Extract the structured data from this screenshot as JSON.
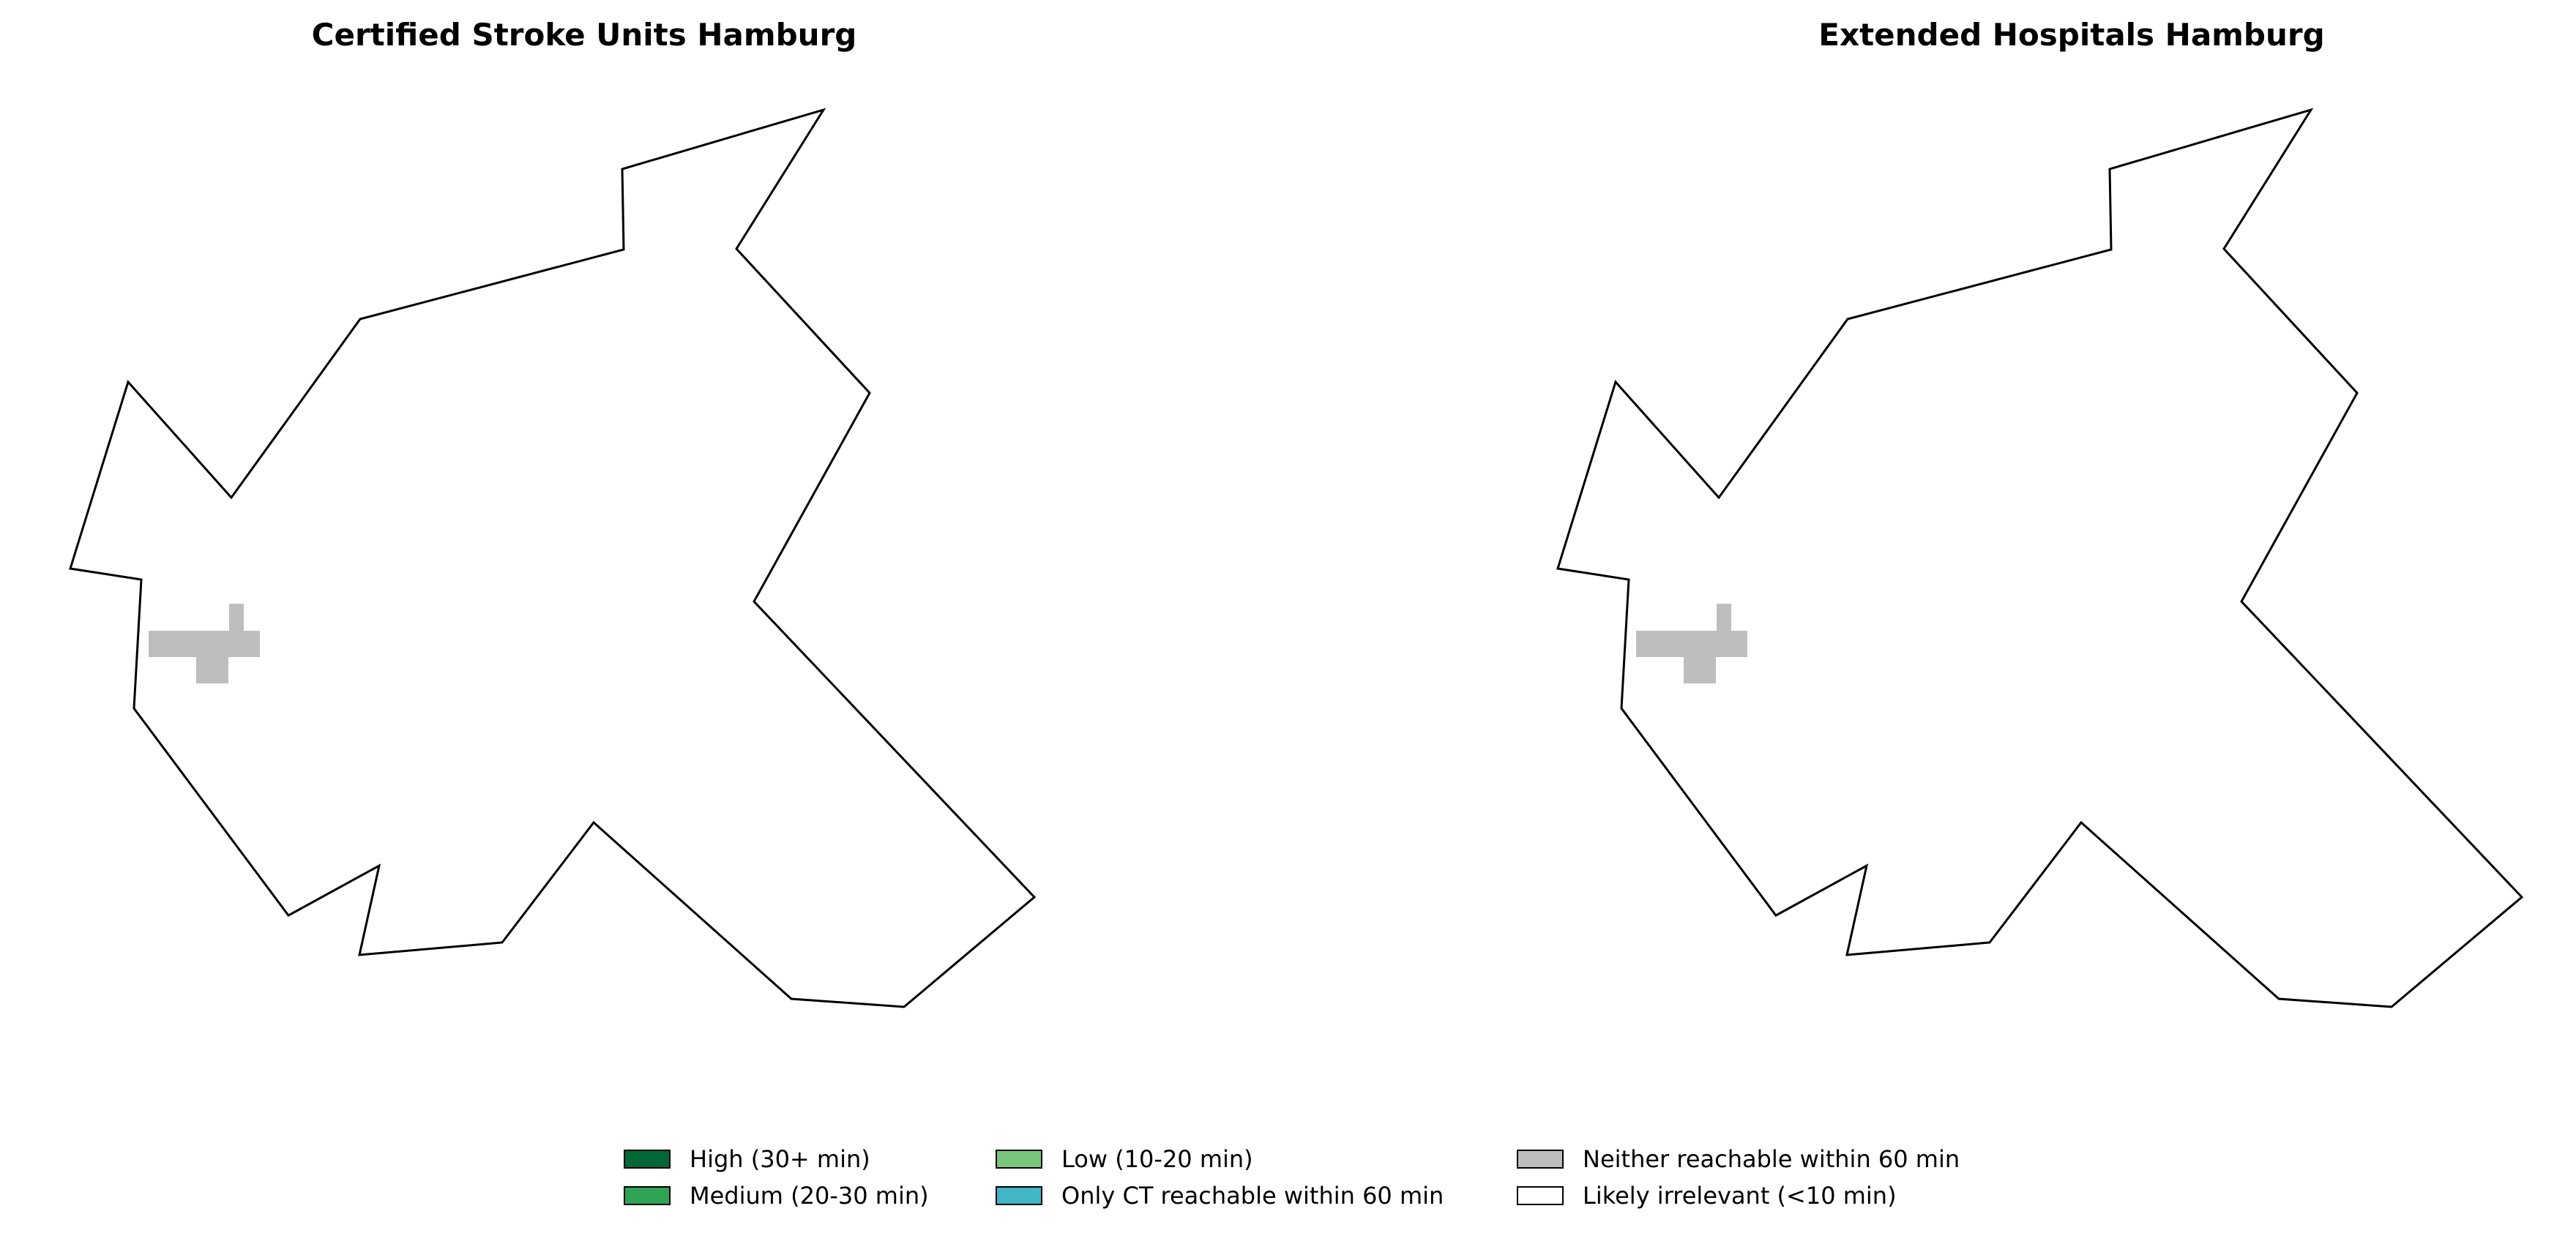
{
  "maps": [
    {
      "title": "Certified Stroke Units Hamburg",
      "region": "Hamburg boundary",
      "unreachable_area_color": "#bebebe"
    },
    {
      "title": "Extended Hospitals Hamburg",
      "region": "Hamburg boundary",
      "unreachable_area_color": "#bebebe"
    }
  ],
  "legend": {
    "items": [
      {
        "label": "High (30+ min)",
        "color": "#006837"
      },
      {
        "label": "Medium (20-30 min)",
        "color": "#31a354"
      },
      {
        "label": "Low (10-20 min)",
        "color": "#78c679"
      },
      {
        "label": "Only CT reachable within 60 min",
        "color": "#41b6c4"
      },
      {
        "label": "Neither reachable within 60 min",
        "color": "#bebebe"
      },
      {
        "label": "Likely irrelevant (<10 min)",
        "color": "#ffffff"
      }
    ]
  },
  "colors": {
    "boundary_stroke": "#000000",
    "background": "#ffffff"
  }
}
